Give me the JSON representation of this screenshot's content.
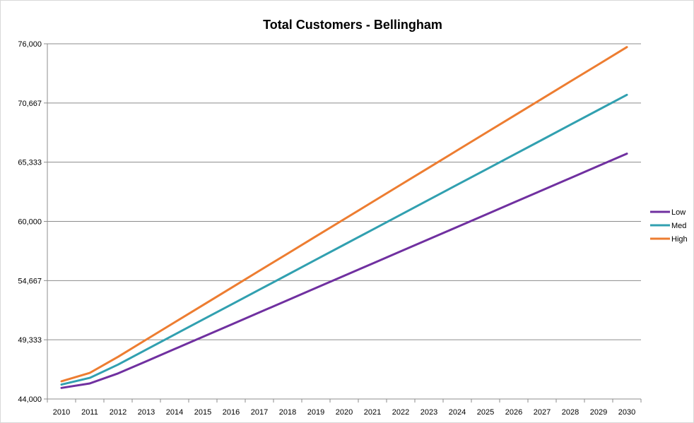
{
  "chart_data": {
    "type": "line",
    "title": "Total Customers - Bellingham",
    "xlabel": "",
    "ylabel": "",
    "x": [
      2010,
      2011,
      2012,
      2013,
      2014,
      2015,
      2016,
      2017,
      2018,
      2019,
      2020,
      2021,
      2022,
      2023,
      2024,
      2025,
      2026,
      2027,
      2028,
      2029,
      2030
    ],
    "categories": [
      "2010",
      "2011",
      "2012",
      "2013",
      "2014",
      "2015",
      "2016",
      "2017",
      "2018",
      "2019",
      "2020",
      "2021",
      "2022",
      "2023",
      "2024",
      "2025",
      "2026",
      "2027",
      "2028",
      "2029",
      "2030"
    ],
    "ylim": [
      44000,
      76000
    ],
    "yticks": [
      "44,000",
      "49,333",
      "54,667",
      "60,000",
      "65,333",
      "70,667",
      "76,000"
    ],
    "ytick_values": [
      44000,
      49333,
      54667,
      60000,
      65333,
      70667,
      76000
    ],
    "grid": true,
    "legend_position": "right",
    "series": [
      {
        "name": "Low",
        "color": "#7030a0",
        "values": [
          45000,
          45400,
          46300,
          47400,
          48500,
          49600,
          50700,
          51800,
          52900,
          54000,
          55100,
          56200,
          57300,
          58400,
          59500,
          60600,
          61700,
          62800,
          63900,
          65000,
          66100
        ]
      },
      {
        "name": "Med",
        "color": "#31a0b0",
        "values": [
          45300,
          45900,
          47100,
          48450,
          49800,
          51150,
          52500,
          53850,
          55200,
          56550,
          57900,
          59250,
          60600,
          61950,
          63300,
          64650,
          66000,
          67350,
          68700,
          70050,
          71400
        ]
      },
      {
        "name": "High",
        "color": "#ed7d31",
        "values": [
          45600,
          46350,
          47800,
          49350,
          50900,
          52450,
          54000,
          55550,
          57100,
          58650,
          60200,
          61750,
          63300,
          64850,
          66400,
          67950,
          69500,
          71050,
          72600,
          74150,
          75700
        ]
      }
    ]
  }
}
